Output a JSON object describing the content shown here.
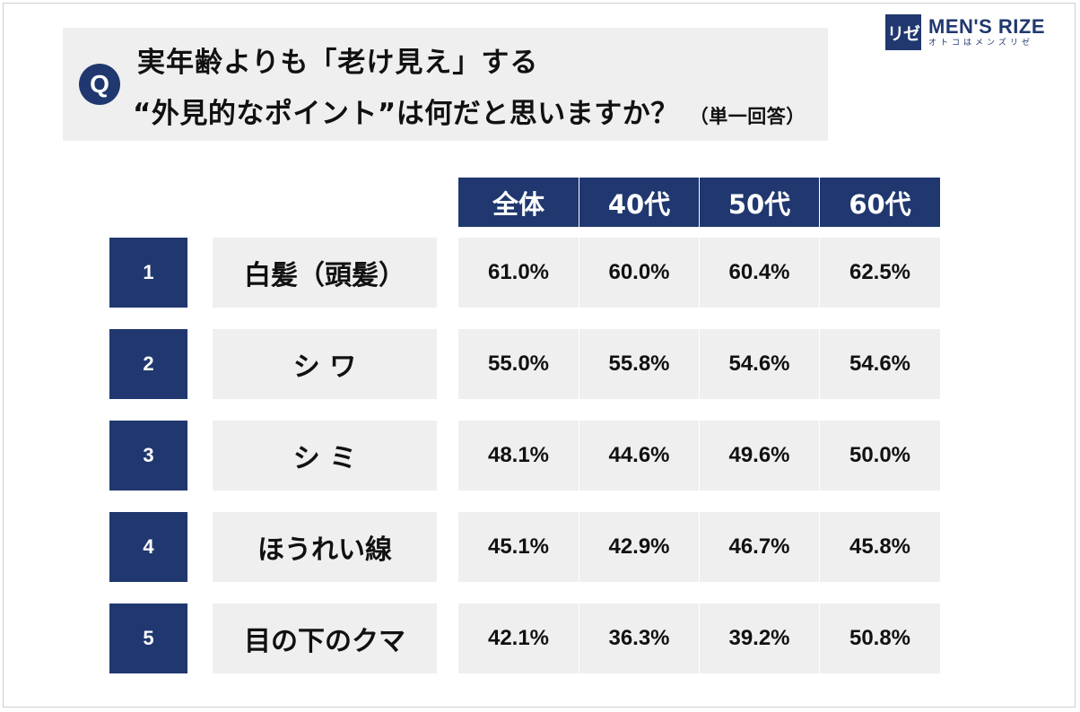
{
  "question": {
    "badge": "Q",
    "line1": "実年齢よりも「老け見え」する",
    "line2": "“外見的なポイント”は何だと思いますか？",
    "note": "（単一回答）"
  },
  "brand": {
    "mark": "リゼ",
    "title": "MEN'S RIZE",
    "subtitle": "オトコはメンズリゼ",
    "color": "#20386f"
  },
  "table": {
    "columns": [
      "全体",
      "40代",
      "50代",
      "60代"
    ],
    "rows": [
      {
        "rank": "1",
        "label": "白髪（頭髪）",
        "values": [
          "61.0%",
          "60.0%",
          "60.4%",
          "62.5%"
        ]
      },
      {
        "rank": "2",
        "label": "シ ワ",
        "values": [
          "55.0%",
          "55.8%",
          "54.6%",
          "54.6%"
        ]
      },
      {
        "rank": "3",
        "label": "シ ミ",
        "values": [
          "48.1%",
          "44.6%",
          "49.6%",
          "50.0%"
        ]
      },
      {
        "rank": "4",
        "label": "ほうれい線",
        "values": [
          "45.1%",
          "42.9%",
          "46.7%",
          "45.8%"
        ]
      },
      {
        "rank": "5",
        "label": "目の下のクマ",
        "values": [
          "42.1%",
          "36.3%",
          "39.2%",
          "50.8%"
        ]
      }
    ],
    "colors": {
      "header": "#20386f",
      "cell": "#efefef"
    }
  }
}
